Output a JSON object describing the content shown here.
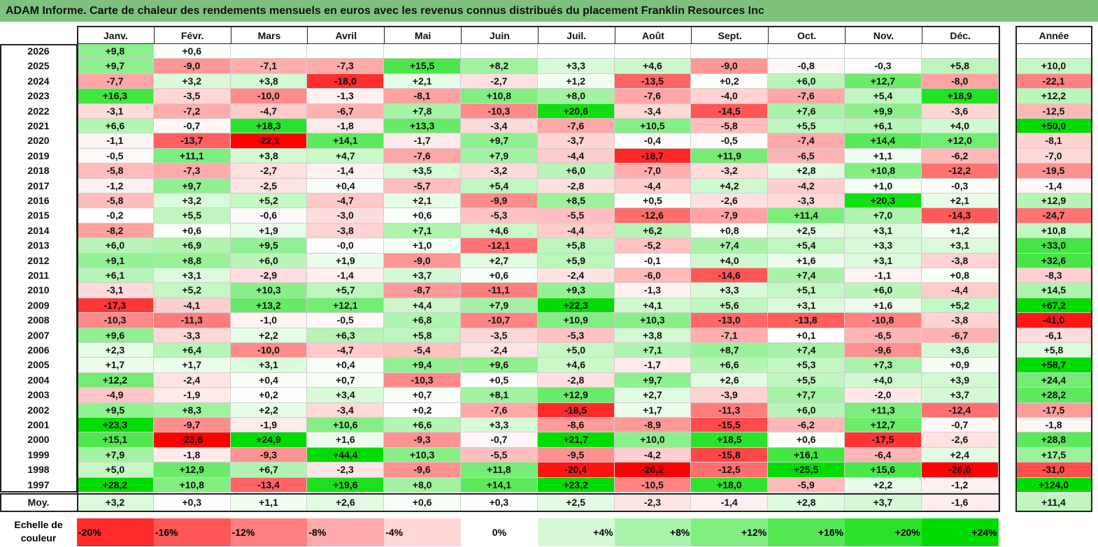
{
  "title": "ADAM Informe. Carte de chaleur des rendements mensuels en euros avec les revenus connus distribués du placement Franklin Resources Inc",
  "chart_data": {
    "type": "heatmap",
    "title": "ADAM Informe. Carte de chaleur des rendements mensuels en euros avec les revenus connus distribués du placement Franklin Resources Inc",
    "months": [
      "Janv.",
      "Févr.",
      "Mars",
      "Avril",
      "Mai",
      "Juin",
      "Juil.",
      "Août",
      "Sept.",
      "Oct.",
      "Nov.",
      "Déc."
    ],
    "year_header": "Année",
    "rows": [
      {
        "year": "2026",
        "values": [
          "+9,8",
          "+0,6",
          "",
          "",
          "",
          "",
          "",
          "",
          "",
          "",
          "",
          ""
        ],
        "annual": ""
      },
      {
        "year": "2025",
        "values": [
          "+9,7",
          "-9,0",
          "-7,1",
          "-7,3",
          "+15,5",
          "+8,2",
          "+3,3",
          "+4,6",
          "-9,0",
          "-0,8",
          "-0,3",
          "+5,8"
        ],
        "annual": "+10,0"
      },
      {
        "year": "2024",
        "values": [
          "-7,7",
          "+3,2",
          "+3,8",
          "-18,0",
          "+2,1",
          "-2,7",
          "+1,2",
          "-13,5",
          "+0,2",
          "+6,0",
          "+12,7",
          "-8,0"
        ],
        "annual": "-22,1"
      },
      {
        "year": "2023",
        "values": [
          "+16,3",
          "-3,5",
          "-10,0",
          "-1,3",
          "-8,1",
          "+10,8",
          "+8,0",
          "-7,6",
          "-4,0",
          "-7,6",
          "+5,4",
          "+18,9"
        ],
        "annual": "+12,2"
      },
      {
        "year": "2022",
        "values": [
          "-3,1",
          "-7,2",
          "-4,7",
          "-6,7",
          "+7,8",
          "-10,3",
          "+20,6",
          "-3,4",
          "-14,5",
          "+7,6",
          "+9,9",
          "-3,6"
        ],
        "annual": "-12,5"
      },
      {
        "year": "2021",
        "values": [
          "+6,6",
          "-0,7",
          "+18,3",
          "-1,8",
          "+13,3",
          "-3,4",
          "-7,6",
          "+10,5",
          "-5,8",
          "+5,5",
          "+6,1",
          "+4,0"
        ],
        "annual": "+50,0"
      },
      {
        "year": "2020",
        "values": [
          "-1,1",
          "-13,7",
          "-22,1",
          "+14,1",
          "-1,7",
          "+9,7",
          "-3,7",
          "-0,4",
          "-0,5",
          "-7,4",
          "+14,4",
          "+12,0"
        ],
        "annual": "-8,1"
      },
      {
        "year": "2019",
        "values": [
          "-0,5",
          "+11,1",
          "+3,8",
          "+4,7",
          "-7,6",
          "+7,9",
          "-4,4",
          "-18,7",
          "+11,9",
          "-6,5",
          "+1,1",
          "-6,2"
        ],
        "annual": "-7,0"
      },
      {
        "year": "2018",
        "values": [
          "-5,8",
          "-7,3",
          "-2,7",
          "-1,4",
          "+3,5",
          "-3,2",
          "+6,0",
          "-7,0",
          "-3,2",
          "+2,8",
          "+10,8",
          "-12,2"
        ],
        "annual": "-19,5"
      },
      {
        "year": "2017",
        "values": [
          "-1,2",
          "+9,7",
          "-2,5",
          "+0,4",
          "-5,7",
          "+5,4",
          "-2,8",
          "-4,4",
          "+4,2",
          "-4,2",
          "+1,0",
          "-0,3"
        ],
        "annual": "-1,4"
      },
      {
        "year": "2016",
        "values": [
          "-5,8",
          "+3,2",
          "+5,2",
          "-4,7",
          "+2,1",
          "-9,9",
          "+8,5",
          "+0,5",
          "-2,6",
          "-3,3",
          "+20,3",
          "+2,1"
        ],
        "annual": "+12,9"
      },
      {
        "year": "2015",
        "values": [
          "-0,2",
          "+5,5",
          "-0,6",
          "-3,0",
          "+0,6",
          "-5,3",
          "-5,5",
          "-12,6",
          "-7,9",
          "+11,4",
          "+7,0",
          "-14,3"
        ],
        "annual": "-24,7"
      },
      {
        "year": "2014",
        "values": [
          "-8,2",
          "+0,6",
          "+1,9",
          "-3,8",
          "+7,1",
          "+4,6",
          "-4,4",
          "+6,2",
          "+0,8",
          "+2,5",
          "+3,1",
          "+1,2"
        ],
        "annual": "+10,8"
      },
      {
        "year": "2013",
        "values": [
          "+6,0",
          "+6,9",
          "+9,5",
          "-0,0",
          "+1,0",
          "-12,1",
          "+5,8",
          "-5,2",
          "+7,4",
          "+5,4",
          "+3,3",
          "+3,1"
        ],
        "annual": "+33,0"
      },
      {
        "year": "2012",
        "values": [
          "+9,1",
          "+8,8",
          "+6,0",
          "+1,9",
          "-9,0",
          "+2,7",
          "+5,9",
          "-0,1",
          "+4,0",
          "+1,6",
          "+3,1",
          "-3,8"
        ],
        "annual": "+32,6"
      },
      {
        "year": "2011",
        "values": [
          "+6,1",
          "+3,1",
          "-2,9",
          "-1,4",
          "+3,7",
          "+0,6",
          "-2,4",
          "-6,0",
          "-14,6",
          "+7,4",
          "-1,1",
          "+0,8"
        ],
        "annual": "-8,3"
      },
      {
        "year": "2010",
        "values": [
          "-3,1",
          "+5,2",
          "+10,3",
          "+5,7",
          "-8,7",
          "-11,1",
          "+9,3",
          "-1,3",
          "+3,3",
          "+5,1",
          "+6,0",
          "-4,4"
        ],
        "annual": "+14,5"
      },
      {
        "year": "2009",
        "values": [
          "-17,3",
          "-4,1",
          "+13,2",
          "+12,1",
          "+4,4",
          "+7,9",
          "+22,3",
          "+4,1",
          "+5,6",
          "+3,1",
          "+1,6",
          "+5,2"
        ],
        "annual": "+67,2"
      },
      {
        "year": "2008",
        "values": [
          "-10,3",
          "-11,3",
          "-1,0",
          "-0,5",
          "+6,8",
          "-10,7",
          "+10,9",
          "+10,3",
          "-13,0",
          "-13,8",
          "-10,8",
          "-3,8"
        ],
        "annual": "-41,0"
      },
      {
        "year": "2007",
        "values": [
          "+9,6",
          "-3,3",
          "+2,2",
          "+6,3",
          "+5,8",
          "-3,5",
          "-5,3",
          "+3,8",
          "-7,1",
          "+0,1",
          "-6,5",
          "-6,7"
        ],
        "annual": "-6,1"
      },
      {
        "year": "2006",
        "values": [
          "+2,3",
          "+6,4",
          "-10,0",
          "-4,7",
          "-5,4",
          "-2,4",
          "+5,0",
          "+7,1",
          "+8,7",
          "+7,4",
          "-9,6",
          "+3,6"
        ],
        "annual": "+5,8"
      },
      {
        "year": "2005",
        "values": [
          "+1,7",
          "+1,7",
          "+3,1",
          "+0,4",
          "+9,4",
          "+9,6",
          "+4,6",
          "-1,7",
          "+6,6",
          "+5,3",
          "+7,3",
          "+0,9"
        ],
        "annual": "+58,7"
      },
      {
        "year": "2004",
        "values": [
          "+12,2",
          "-2,4",
          "+0,4",
          "+0,7",
          "-10,3",
          "+0,5",
          "-2,8",
          "+9,7",
          "+2,6",
          "+5,5",
          "+4,0",
          "+3,9"
        ],
        "annual": "+24,4"
      },
      {
        "year": "2003",
        "values": [
          "-4,9",
          "-1,9",
          "+0,2",
          "+3,4",
          "+0,7",
          "+8,1",
          "+12,9",
          "+2,7",
          "-3,9",
          "+7,7",
          "-2,0",
          "+3,7"
        ],
        "annual": "+28,2"
      },
      {
        "year": "2002",
        "values": [
          "+9,5",
          "+8,3",
          "+2,2",
          "-3,4",
          "+0,2",
          "-7,6",
          "-18,5",
          "+1,7",
          "-11,3",
          "+6,0",
          "+11,3",
          "-12,4"
        ],
        "annual": "-17,5"
      },
      {
        "year": "2001",
        "values": [
          "+23,3",
          "-9,7",
          "-1,9",
          "+10,6",
          "+6,6",
          "+3,3",
          "-8,6",
          "-8,9",
          "-15,5",
          "-6,2",
          "+12,7",
          "-0,7"
        ],
        "annual": "-1,8"
      },
      {
        "year": "2000",
        "values": [
          "+15,1",
          "-23,6",
          "+24,9",
          "+1,6",
          "-9,3",
          "-0,7",
          "+21,7",
          "+10,0",
          "+18,5",
          "+0,6",
          "-17,5",
          "-2,6"
        ],
        "annual": "+28,8"
      },
      {
        "year": "1999",
        "values": [
          "+7,9",
          "-1,8",
          "-9,3",
          "+44,4",
          "+10,3",
          "-5,5",
          "-9,5",
          "-4,2",
          "-15,8",
          "+16,1",
          "-6,4",
          "+2,4"
        ],
        "annual": "+17,5"
      },
      {
        "year": "1998",
        "values": [
          "+5,0",
          "+12,9",
          "+6,7",
          "-2,3",
          "-9,6",
          "+11,8",
          "-20,4",
          "-26,2",
          "-12,5",
          "+25,5",
          "+15,6",
          "-26,0"
        ],
        "annual": "-31,0"
      },
      {
        "year": "1997",
        "values": [
          "+28,2",
          "+10,8",
          "-13,4",
          "+19,6",
          "+8,0",
          "+14,1",
          "+23,2",
          "-10,5",
          "+18,0",
          "-5,9",
          "+2,2",
          "-1,2"
        ],
        "annual": "+124,0"
      }
    ],
    "average": {
      "label": "Moy.",
      "values": [
        "+3,2",
        "+0,3",
        "+1,1",
        "+2,6",
        "+0,6",
        "+0,3",
        "+2,5",
        "-2,3",
        "-1,4",
        "+2,8",
        "+3,7",
        "-1,6"
      ],
      "annual": "+11,4"
    },
    "scale_label": "Echelle de couleur",
    "scale": [
      {
        "label": "-20%",
        "value": -20
      },
      {
        "label": "-16%",
        "value": -16
      },
      {
        "label": "-12%",
        "value": -12
      },
      {
        "label": "-8%",
        "value": -8
      },
      {
        "label": "-4%",
        "value": -4
      },
      {
        "label": "0%",
        "value": 0
      },
      {
        "label": "+4%",
        "value": 4
      },
      {
        "label": "+8%",
        "value": 8
      },
      {
        "label": "+12%",
        "value": 12
      },
      {
        "label": "+16%",
        "value": 16
      },
      {
        "label": "+20%",
        "value": 20
      },
      {
        "label": "+24%",
        "value": 24
      }
    ],
    "colors": {
      "negative": "#ff0000",
      "neutral": "#ffffff",
      "positive": "#00dd00",
      "title_bar": "#7dc17d"
    }
  }
}
